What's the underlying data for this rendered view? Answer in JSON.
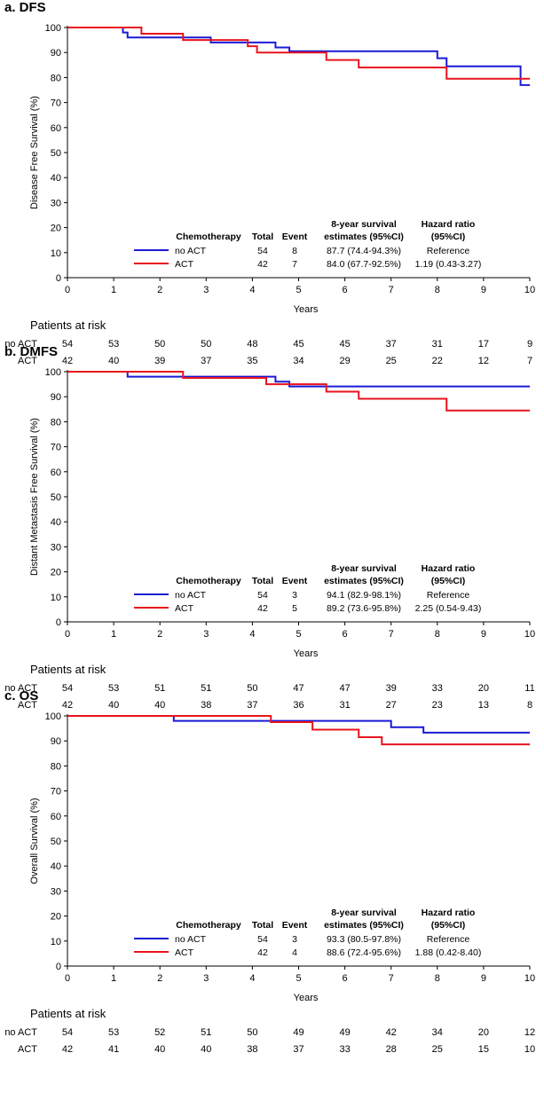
{
  "chart_data": [
    {
      "type": "line",
      "step": true,
      "title": "a. DFS",
      "xlabel": "Years",
      "ylabel": "Disease Free Survival (%)",
      "xlim": [
        0,
        10
      ],
      "ylim": [
        0,
        100
      ],
      "xticks": [
        0,
        1,
        2,
        3,
        4,
        5,
        6,
        7,
        8,
        9,
        10
      ],
      "yticks": [
        0,
        10,
        20,
        30,
        40,
        50,
        60,
        70,
        80,
        90,
        100
      ],
      "colors": {
        "no_act": "#1a1ad6",
        "act": "#e8141e"
      },
      "series": [
        {
          "name": "no ACT",
          "key": "no_act",
          "x": [
            0,
            1.2,
            1.3,
            3.1,
            4.5,
            4.8,
            8.0,
            8.2,
            9.8,
            10
          ],
          "y": [
            100,
            98,
            96,
            94,
            92,
            90.5,
            87.7,
            84.5,
            77,
            77
          ]
        },
        {
          "name": "ACT",
          "key": "act",
          "x": [
            0,
            1.6,
            2.5,
            3.9,
            4.1,
            5.6,
            6.3,
            8.2,
            10
          ],
          "y": [
            100,
            97.5,
            95,
            92.5,
            90,
            87,
            84,
            79.5,
            79.5
          ]
        }
      ],
      "legend": {
        "headers": [
          "Chemotherapy",
          "Total",
          "Event",
          "8-year survival",
          "estimates (95%CI)",
          "Hazard ratio",
          "(95%CI)"
        ],
        "rows": [
          {
            "group": "no ACT",
            "total": "54",
            "event": "8",
            "estimate": "87.7 (74.4-94.3%)",
            "hr": "Reference"
          },
          {
            "group": "ACT",
            "total": "42",
            "event": "7",
            "estimate": "84.0 (67.7-92.5%)",
            "hr": "1.19 (0.43-3.27)"
          }
        ]
      },
      "risk_table": {
        "title": "Patients at risk",
        "rows": [
          {
            "label": "no ACT",
            "values": [
              "54",
              "53",
              "50",
              "50",
              "48",
              "45",
              "45",
              "37",
              "31",
              "17",
              "9"
            ]
          },
          {
            "label": "ACT",
            "values": [
              "42",
              "40",
              "39",
              "37",
              "35",
              "34",
              "29",
              "25",
              "22",
              "12",
              "7"
            ]
          }
        ]
      }
    },
    {
      "type": "line",
      "step": true,
      "title": "b. DMFS",
      "xlabel": "Years",
      "ylabel": "Distant Metastasis Free Survival (%)",
      "xlim": [
        0,
        10
      ],
      "ylim": [
        0,
        100
      ],
      "xticks": [
        0,
        1,
        2,
        3,
        4,
        5,
        6,
        7,
        8,
        9,
        10
      ],
      "yticks": [
        0,
        10,
        20,
        30,
        40,
        50,
        60,
        70,
        80,
        90,
        100
      ],
      "colors": {
        "no_act": "#1a1ad6",
        "act": "#e8141e"
      },
      "series": [
        {
          "name": "no ACT",
          "key": "no_act",
          "x": [
            0,
            1.3,
            2.5,
            4.5,
            4.8,
            5.6,
            10
          ],
          "y": [
            100,
            98,
            98,
            96,
            94.1,
            94.1,
            94.1
          ]
        },
        {
          "name": "ACT",
          "key": "act",
          "x": [
            0,
            2.5,
            4.3,
            5.6,
            6.3,
            8.2,
            10
          ],
          "y": [
            100,
            97.5,
            95,
            92,
            89.2,
            84.5,
            84.5
          ]
        }
      ],
      "legend": {
        "headers": [
          "Chemotherapy",
          "Total",
          "Event",
          "8-year survival",
          "estimates (95%CI)",
          "Hazard ratio",
          "(95%CI)"
        ],
        "rows": [
          {
            "group": "no ACT",
            "total": "54",
            "event": "3",
            "estimate": "94.1 (82.9-98.1%)",
            "hr": "Reference"
          },
          {
            "group": "ACT",
            "total": "42",
            "event": "5",
            "estimate": "89.2 (73.6-95.8%)",
            "hr": "2.25 (0.54-9.43)"
          }
        ]
      },
      "risk_table": {
        "title": "Patients at risk",
        "rows": [
          {
            "label": "no ACT",
            "values": [
              "54",
              "53",
              "51",
              "51",
              "50",
              "47",
              "47",
              "39",
              "33",
              "20",
              "11"
            ]
          },
          {
            "label": "ACT",
            "values": [
              "42",
              "40",
              "40",
              "38",
              "37",
              "36",
              "31",
              "27",
              "23",
              "13",
              "8"
            ]
          }
        ]
      }
    },
    {
      "type": "line",
      "step": true,
      "title": "c. OS",
      "xlabel": "Years",
      "ylabel": "Overall Survival (%)",
      "xlim": [
        0,
        10
      ],
      "ylim": [
        0,
        100
      ],
      "xticks": [
        0,
        1,
        2,
        3,
        4,
        5,
        6,
        7,
        8,
        9,
        10
      ],
      "yticks": [
        0,
        10,
        20,
        30,
        40,
        50,
        60,
        70,
        80,
        90,
        100
      ],
      "colors": {
        "no_act": "#1a1ad6",
        "act": "#e8141e"
      },
      "series": [
        {
          "name": "no ACT",
          "key": "no_act",
          "x": [
            0,
            2.3,
            5.3,
            7.0,
            7.7,
            10
          ],
          "y": [
            100,
            98,
            98,
            95.5,
            93.3,
            93.3
          ]
        },
        {
          "name": "ACT",
          "key": "act",
          "x": [
            0,
            4.4,
            5.3,
            6.3,
            6.8,
            10
          ],
          "y": [
            100,
            97.5,
            94.5,
            91.5,
            88.6,
            88.6
          ]
        }
      ],
      "legend": {
        "headers": [
          "Chemotherapy",
          "Total",
          "Event",
          "8-year survival",
          "estimates (95%CI)",
          "Hazard ratio",
          "(95%CI)"
        ],
        "rows": [
          {
            "group": "no ACT",
            "total": "54",
            "event": "3",
            "estimate": "93.3 (80.5-97.8%)",
            "hr": "Reference"
          },
          {
            "group": "ACT",
            "total": "42",
            "event": "4",
            "estimate": "88.6 (72.4-95.6%)",
            "hr": "1.88 (0.42-8.40)"
          }
        ]
      },
      "risk_table": {
        "title": "Patients at risk",
        "rows": [
          {
            "label": "no ACT",
            "values": [
              "54",
              "53",
              "52",
              "51",
              "50",
              "49",
              "49",
              "42",
              "34",
              "20",
              "12"
            ]
          },
          {
            "label": "ACT",
            "values": [
              "42",
              "41",
              "40",
              "40",
              "38",
              "37",
              "33",
              "28",
              "25",
              "15",
              "10"
            ]
          }
        ]
      }
    }
  ]
}
